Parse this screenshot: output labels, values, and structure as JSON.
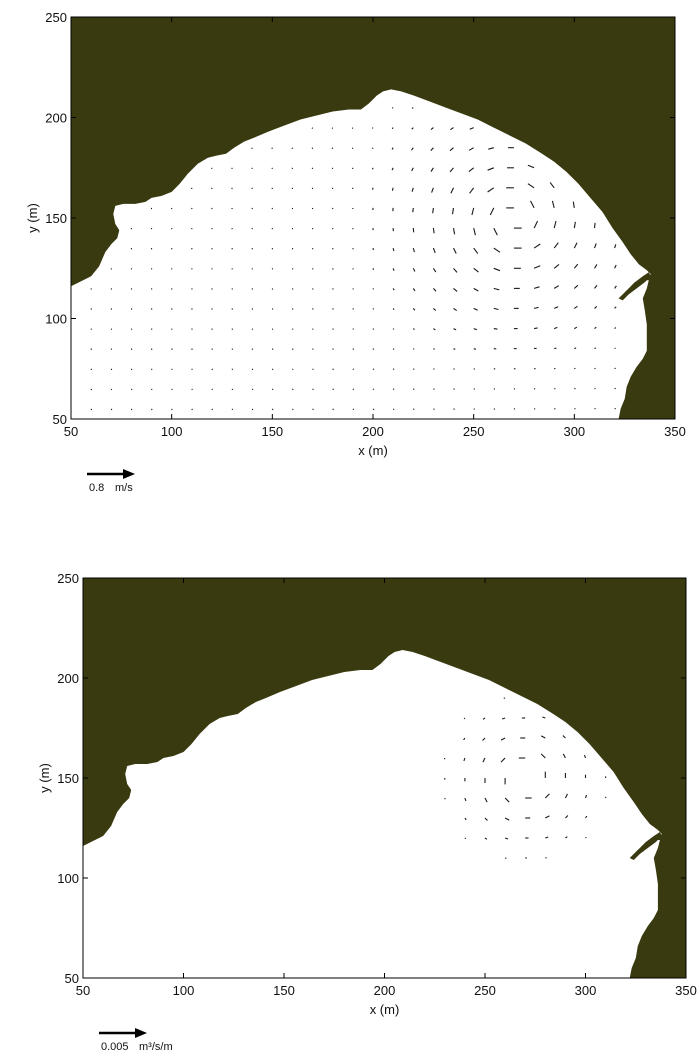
{
  "colors": {
    "land": "#3a3a10",
    "vector": "#1a1a1a",
    "frame": "#000000"
  },
  "chart_data": [
    {
      "type": "quiver",
      "xlabel": "x (m)",
      "ylabel": "y (m)",
      "xlim": [
        50,
        350
      ],
      "ylim": [
        50,
        250
      ],
      "xticks": [
        "50",
        "100",
        "150",
        "200",
        "250",
        "300",
        "350"
      ],
      "yticks": [
        "50",
        "100",
        "150",
        "200",
        "250"
      ],
      "scale_arrow": {
        "value": "0.8",
        "units": "m/s"
      }
    },
    {
      "type": "quiver",
      "xlabel": "x (m)",
      "ylabel": "y (m)",
      "xlim": [
        50,
        350
      ],
      "ylim": [
        50,
        250
      ],
      "xticks": [
        "50",
        "100",
        "150",
        "200",
        "250",
        "300",
        "350"
      ],
      "yticks": [
        "50",
        "100",
        "150",
        "200",
        "250"
      ],
      "scale_arrow": {
        "value": "0.005",
        "units": "m³/s/m"
      }
    }
  ]
}
